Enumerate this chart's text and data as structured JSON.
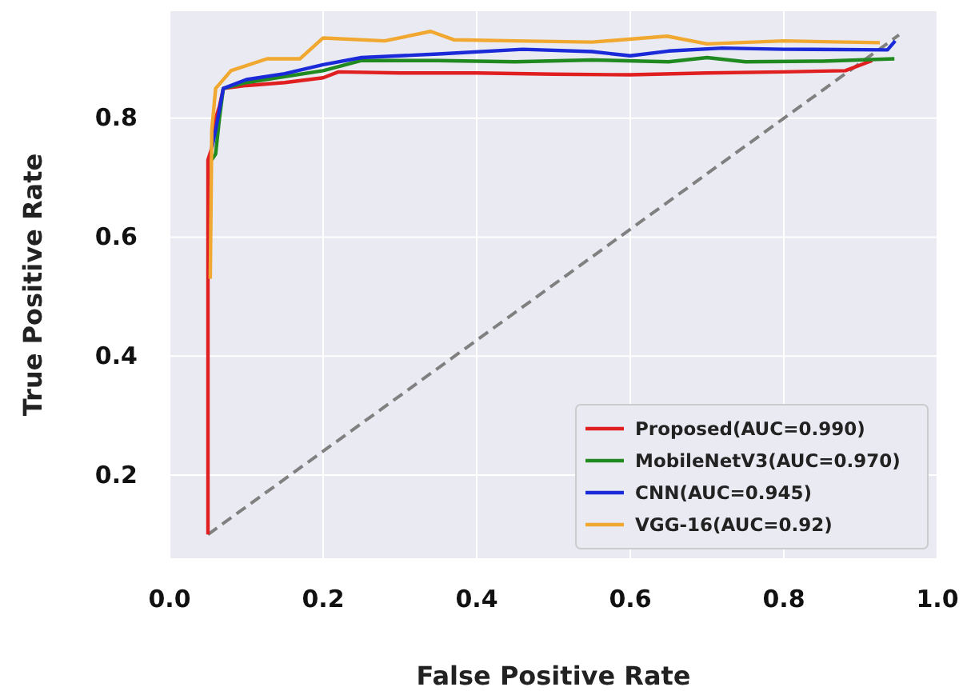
{
  "chart_data": {
    "type": "line",
    "xlabel": "False Positive Rate",
    "ylabel": "True Positive Rate",
    "xlim": [
      0,
      1
    ],
    "ylim": [
      0.06,
      0.98
    ],
    "xticks": [
      {
        "value": 0,
        "label": "0.0"
      },
      0.2,
      0.4,
      0.6,
      0.8,
      {
        "value": 1,
        "label": "1.0"
      }
    ],
    "yticks": [
      0.2,
      0.4,
      0.6,
      0.8
    ],
    "grid": true,
    "legend": "bottom right",
    "series": [
      {
        "type": "line",
        "color": "#808080",
        "line_style": "dashed",
        "x": [
          0.05,
          0.95
        ],
        "values": [
          0.1,
          0.94
        ]
      },
      {
        "name": "Proposed(AUC=0.990)",
        "color": "#e02020",
        "x": [
          0.05,
          0.05,
          0.055,
          0.06,
          0.065,
          0.07,
          0.1,
          0.15,
          0.2,
          0.22,
          0.3,
          0.4,
          0.5,
          0.6,
          0.7,
          0.8,
          0.88,
          0.915
        ],
        "values": [
          0.1,
          0.73,
          0.75,
          0.8,
          0.82,
          0.85,
          0.855,
          0.86,
          0.868,
          0.878,
          0.876,
          0.876,
          0.874,
          0.873,
          0.876,
          0.878,
          0.88,
          0.897
        ]
      },
      {
        "name": "MobileNetV3(AUC=0.970)",
        "color": "#208a20",
        "x": [
          0.055,
          0.06,
          0.065,
          0.07,
          0.1,
          0.15,
          0.2,
          0.25,
          0.35,
          0.45,
          0.55,
          0.65,
          0.7,
          0.75,
          0.85,
          0.944
        ],
        "values": [
          0.73,
          0.74,
          0.8,
          0.85,
          0.86,
          0.87,
          0.88,
          0.897,
          0.897,
          0.895,
          0.898,
          0.895,
          0.902,
          0.895,
          0.896,
          0.9
        ]
      },
      {
        "name": "CNN(AUC=0.945)",
        "color": "#1a2ad8",
        "x": [
          0.055,
          0.06,
          0.07,
          0.1,
          0.15,
          0.2,
          0.25,
          0.35,
          0.46,
          0.55,
          0.6,
          0.65,
          0.72,
          0.8,
          0.935,
          0.945
        ],
        "values": [
          0.75,
          0.78,
          0.85,
          0.865,
          0.875,
          0.89,
          0.902,
          0.908,
          0.916,
          0.912,
          0.905,
          0.913,
          0.918,
          0.916,
          0.915,
          0.93
        ]
      },
      {
        "name": "VGG-16(AUC=0.92)",
        "color": "#f0a830",
        "x": [
          0.053,
          0.055,
          0.06,
          0.08,
          0.127,
          0.17,
          0.2,
          0.28,
          0.34,
          0.37,
          0.45,
          0.55,
          0.648,
          0.7,
          0.8,
          0.925
        ],
        "values": [
          0.53,
          0.78,
          0.85,
          0.88,
          0.9,
          0.9,
          0.935,
          0.93,
          0.946,
          0.932,
          0.93,
          0.928,
          0.938,
          0.925,
          0.93,
          0.927
        ]
      }
    ]
  }
}
